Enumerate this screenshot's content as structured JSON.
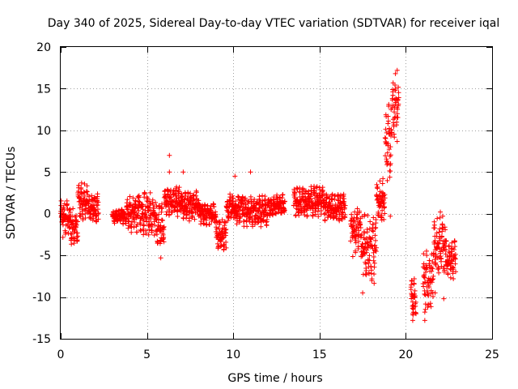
{
  "chart_data": {
    "type": "scatter",
    "title": "Day 340 of 2025, Sidereal Day-to-day VTEC variation (SDTVAR) for receiver iqal",
    "xlabel": "GPS time / hours",
    "ylabel": "SDTVAR / TECUs",
    "xlim": [
      0,
      25
    ],
    "ylim": [
      -15,
      20
    ],
    "xticks": [
      0,
      5,
      10,
      15,
      20,
      25
    ],
    "yticks": [
      -15,
      -10,
      -5,
      0,
      5,
      10,
      15,
      20
    ],
    "xtick_labels": [
      "0",
      "5",
      "10",
      "15",
      "20",
      "25"
    ],
    "ytick_labels": [
      "-15",
      "-10",
      "-5",
      "0",
      "5",
      "10",
      "15",
      "20"
    ],
    "grid": true,
    "marker": "plus",
    "color": "#ff0000",
    "segments": [
      {
        "x0": 0.0,
        "x1": 0.5,
        "center": -0.5,
        "spread": 2.5
      },
      {
        "x0": 0.5,
        "x1": 1.0,
        "center": -1.5,
        "spread": 2.5
      },
      {
        "x0": 1.0,
        "x1": 1.6,
        "center": 1.5,
        "spread": 2.5
      },
      {
        "x0": 1.6,
        "x1": 2.2,
        "center": 0.5,
        "spread": 2.0
      },
      {
        "x0": 3.0,
        "x1": 3.8,
        "center": -0.3,
        "spread": 1.0
      },
      {
        "x0": 3.8,
        "x1": 4.5,
        "center": 0.0,
        "spread": 2.5
      },
      {
        "x0": 4.5,
        "x1": 5.5,
        "center": 0.0,
        "spread": 3.0
      },
      {
        "x0": 5.5,
        "x1": 6.0,
        "center": -1.5,
        "spread": 3.0
      },
      {
        "x0": 6.0,
        "x1": 7.0,
        "center": 1.5,
        "spread": 2.0
      },
      {
        "x0": 7.0,
        "x1": 8.0,
        "center": 1.0,
        "spread": 2.0
      },
      {
        "x0": 8.0,
        "x1": 9.0,
        "center": 0.0,
        "spread": 1.5
      },
      {
        "x0": 9.0,
        "x1": 9.6,
        "center": -2.5,
        "spread": 2.0
      },
      {
        "x0": 9.6,
        "x1": 10.5,
        "center": 0.5,
        "spread": 2.0
      },
      {
        "x0": 10.5,
        "x1": 12.0,
        "center": 0.3,
        "spread": 2.0
      },
      {
        "x0": 12.0,
        "x1": 13.0,
        "center": 1.0,
        "spread": 1.5
      },
      {
        "x0": 13.5,
        "x1": 15.2,
        "center": 1.5,
        "spread": 2.0
      },
      {
        "x0": 15.2,
        "x1": 16.5,
        "center": 0.8,
        "spread": 1.8
      },
      {
        "x0": 16.8,
        "x1": 17.4,
        "center": -2.0,
        "spread": 3.5
      },
      {
        "x0": 17.4,
        "x1": 18.3,
        "center": -4.0,
        "spread": 5.0
      },
      {
        "x0": 18.3,
        "x1": 18.8,
        "center": 1.5,
        "spread": 3.0
      },
      {
        "x0": 18.8,
        "x1": 19.2,
        "center": 8.0,
        "spread": 6.0
      },
      {
        "x0": 19.2,
        "x1": 19.6,
        "center": 12.5,
        "spread": 4.5
      },
      {
        "x0": 20.3,
        "x1": 20.6,
        "center": -10.0,
        "spread": 2.5
      },
      {
        "x0": 21.0,
        "x1": 21.6,
        "center": -8.0,
        "spread": 4.0
      },
      {
        "x0": 21.6,
        "x1": 22.3,
        "center": -4.0,
        "spread": 4.0
      },
      {
        "x0": 22.3,
        "x1": 22.9,
        "center": -5.5,
        "spread": 2.5
      }
    ],
    "outliers": [
      {
        "x": 6.3,
        "y": 7.0
      },
      {
        "x": 6.3,
        "y": 5.0
      },
      {
        "x": 7.1,
        "y": 5.0
      },
      {
        "x": 5.8,
        "y": -5.3
      },
      {
        "x": 11.0,
        "y": 5.0
      },
      {
        "x": 10.1,
        "y": 4.5
      },
      {
        "x": 19.5,
        "y": 17.2
      },
      {
        "x": 19.4,
        "y": 16.8
      },
      {
        "x": 19.1,
        "y": -0.3
      },
      {
        "x": 20.4,
        "y": -12.0
      },
      {
        "x": 20.4,
        "y": -12.8
      },
      {
        "x": 21.1,
        "y": -12.8
      },
      {
        "x": 21.1,
        "y": -11.8
      },
      {
        "x": 22.0,
        "y": 0.2
      },
      {
        "x": 21.7,
        "y": -9.5
      },
      {
        "x": 22.2,
        "y": -10.2
      },
      {
        "x": 20.3,
        "y": -8.8
      },
      {
        "x": 17.5,
        "y": -9.5
      }
    ]
  }
}
